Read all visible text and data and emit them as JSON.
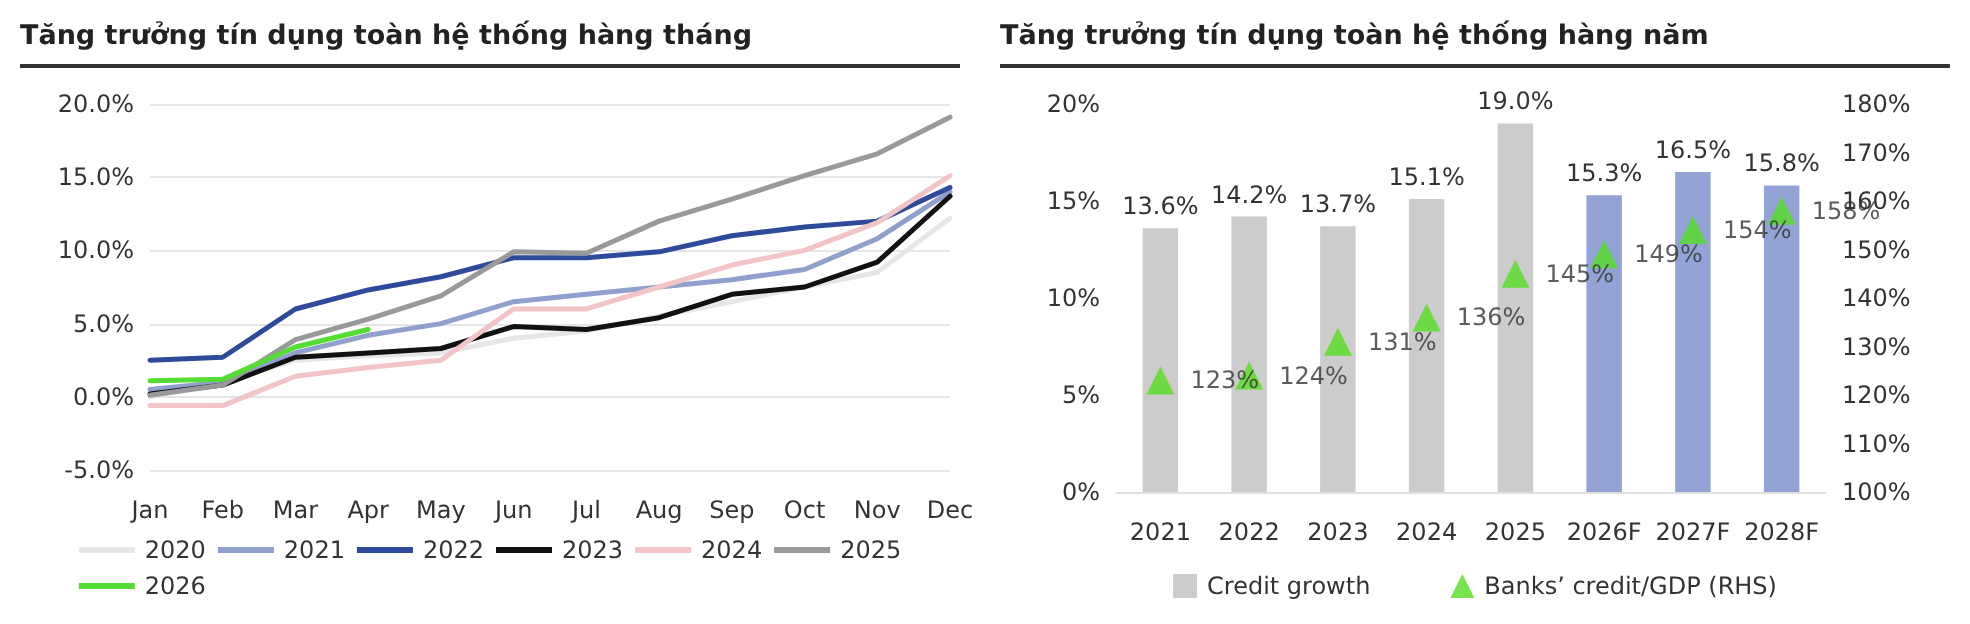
{
  "chart_data": [
    {
      "type": "line",
      "title": "Tăng trưởng tín dụng toàn hệ thống hàng tháng",
      "categories": [
        "Jan",
        "Feb",
        "Mar",
        "Apr",
        "May",
        "Jun",
        "Jul",
        "Aug",
        "Sep",
        "Oct",
        "Nov",
        "Dec"
      ],
      "series": [
        {
          "name": "2020",
          "color": "#e6e6e6",
          "values": [
            0.0,
            1.0,
            2.5,
            2.8,
            3.0,
            4.0,
            4.5,
            5.5,
            6.5,
            7.5,
            8.5,
            12.2
          ]
        },
        {
          "name": "2021",
          "color": "#8fa0cc",
          "values": [
            0.5,
            1.0,
            3.0,
            4.2,
            5.0,
            6.5,
            7.0,
            7.5,
            8.0,
            8.7,
            10.8,
            14.0
          ]
        },
        {
          "name": "2022",
          "color": "#2e4a9a",
          "values": [
            2.5,
            2.7,
            6.0,
            7.3,
            8.2,
            9.5,
            9.5,
            9.9,
            11.0,
            11.6,
            12.0,
            14.3
          ]
        },
        {
          "name": "2023",
          "color": "#111111",
          "values": [
            0.2,
            0.8,
            2.7,
            3.0,
            3.3,
            4.8,
            4.6,
            5.4,
            7.0,
            7.5,
            9.2,
            13.7
          ]
        },
        {
          "name": "2024",
          "color": "#f2c4c8",
          "values": [
            -0.6,
            -0.6,
            1.4,
            2.0,
            2.5,
            6.0,
            6.0,
            7.5,
            9.0,
            10.0,
            11.9,
            15.1
          ]
        },
        {
          "name": "2025",
          "color": "#999999",
          "values": [
            0.1,
            0.8,
            3.9,
            5.3,
            6.9,
            9.9,
            9.8,
            12.0,
            13.5,
            15.1,
            16.6,
            19.1
          ]
        },
        {
          "name": "2026",
          "color": "#55dd33",
          "values": [
            1.1,
            1.2,
            3.4,
            4.6,
            null,
            null,
            null,
            null,
            null,
            null,
            null,
            null
          ]
        }
      ],
      "ylim": [
        -5,
        20
      ],
      "yticks": [
        {
          "value": -5,
          "label": "-5.0%"
        },
        {
          "value": 0,
          "label": "0.0%"
        },
        {
          "value": 5,
          "label": "5.0%"
        },
        {
          "value": 10,
          "label": "10.0%"
        },
        {
          "value": 15,
          "label": "15.0%"
        },
        {
          "value": 20,
          "label": "20.0%"
        }
      ],
      "grid": "y",
      "legend": "bottom",
      "marker": "none",
      "line_style": "solid"
    },
    {
      "type": "bar",
      "title": "Tăng trưởng tín dụng toàn hệ thống hàng năm",
      "categories": [
        "2021",
        "2022",
        "2023",
        "2024",
        "2025",
        "2026F",
        "2027F",
        "2028F"
      ],
      "series": [
        {
          "name": "Credit growth",
          "color": "#cccccc",
          "colors": [
            "#cccccc",
            "#cccccc",
            "#cccccc",
            "#cccccc",
            "#cccccc",
            "#93a3d6",
            "#93a3d6",
            "#93a3d6"
          ],
          "values": [
            13.6,
            14.2,
            13.7,
            15.1,
            19.0,
            15.3,
            16.5,
            15.8
          ],
          "value_labels": [
            "13.6%",
            "14.2%",
            "13.7%",
            "15.1%",
            "19.0%",
            "15.3%",
            "16.5%",
            "15.8%"
          ]
        },
        {
          "name": "Banks’ credit/GDP (RHS)",
          "type": "scatter",
          "axis": "y2",
          "marker": "triangle",
          "color": "#55dd22",
          "values": [
            123,
            124,
            131,
            136,
            145,
            149,
            154,
            158
          ],
          "value_labels": [
            "123%",
            "124%",
            "131%",
            "136%",
            "145%",
            "149%",
            "154%",
            "158%"
          ]
        }
      ],
      "ylim": [
        0,
        20
      ],
      "yticks": [
        {
          "value": 0,
          "label": "0%"
        },
        {
          "value": 5,
          "label": "5%"
        },
        {
          "value": 10,
          "label": "10%"
        },
        {
          "value": 15,
          "label": "15%"
        },
        {
          "value": 20,
          "label": "20%"
        }
      ],
      "y2lim": [
        100,
        180
      ],
      "y2ticks": [
        {
          "value": 100,
          "label": "100%"
        },
        {
          "value": 110,
          "label": "110%"
        },
        {
          "value": 120,
          "label": "120%"
        },
        {
          "value": 130,
          "label": "130%"
        },
        {
          "value": 140,
          "label": "140%"
        },
        {
          "value": 150,
          "label": "150%"
        },
        {
          "value": 160,
          "label": "160%"
        },
        {
          "value": 170,
          "label": "170%"
        },
        {
          "value": 180,
          "label": "180%"
        }
      ],
      "grid": false,
      "legend": "bottom"
    }
  ]
}
